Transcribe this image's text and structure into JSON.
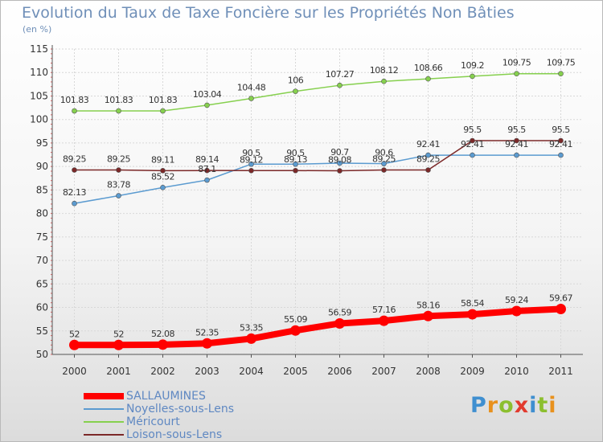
{
  "title": "Evolution du Taux de Taxe Foncière sur les Propriétés Non Bâties",
  "unit": "(en %)",
  "logo": {
    "letters": [
      "P",
      "r",
      "o",
      "x",
      "i",
      "t",
      "i"
    ],
    "colors": [
      "#3f8fd0",
      "#e8911d",
      "#8cbf2f",
      "#e23a2e",
      "#3f8fd0",
      "#8cbf2f",
      "#e8911d"
    ]
  },
  "chart_data": {
    "type": "line",
    "x": [
      "2000",
      "2001",
      "2002",
      "2003",
      "2004",
      "2005",
      "2006",
      "2007",
      "2008",
      "2009",
      "2010",
      "2011"
    ],
    "ylim": [
      50,
      115
    ],
    "yticks": [
      "50",
      "55",
      "60",
      "65",
      "70",
      "75",
      "80",
      "85",
      "90",
      "95",
      "100",
      "105",
      "110",
      "115"
    ],
    "grid": true,
    "legend": "bottom-left",
    "series": [
      {
        "name": "SALLAUMINES",
        "color": "#ff0000",
        "values": [
          52,
          52,
          52.08,
          52.35,
          53.35,
          55.09,
          56.59,
          57.16,
          58.16,
          58.54,
          59.24,
          59.67
        ],
        "labels": [
          "52",
          "52",
          "52.08",
          "52.35",
          "53.35",
          "55.09",
          "56.59",
          "57.16",
          "58.16",
          "58.54",
          "59.24",
          "59.67"
        ]
      },
      {
        "name": "Noyelles-sous-Lens",
        "color": "#5b9bd0",
        "values": [
          82.13,
          83.78,
          85.52,
          87.1,
          90.5,
          90.5,
          90.7,
          90.6,
          92.41,
          92.41,
          92.41,
          92.41
        ],
        "labels": [
          "82.13",
          "83.78",
          "85.52",
          "87.1",
          "90.5",
          "90.5",
          "90.7",
          "90.6",
          "92.41",
          "92.41",
          "92.41",
          "92.41"
        ]
      },
      {
        "name": "Méricourt",
        "color": "#86d04e",
        "values": [
          101.83,
          101.83,
          101.83,
          103.04,
          104.48,
          106,
          107.27,
          108.12,
          108.66,
          109.2,
          109.75,
          109.75
        ],
        "labels": [
          "101.83",
          "101.83",
          "101.83",
          "103.04",
          "104.48",
          "106",
          "107.27",
          "108.12",
          "108.66",
          "109.2",
          "109.75",
          "109.75"
        ]
      },
      {
        "name": "Loison-sous-Lens",
        "color": "#7b2828",
        "values": [
          89.25,
          89.25,
          89.11,
          89.14,
          89.12,
          89.13,
          89.08,
          89.25,
          89.25,
          95.5,
          95.5,
          95.5
        ],
        "labels": [
          "89.25",
          "89.25",
          "89.11",
          "89.14",
          "89.12",
          "89.13",
          "89.08",
          "89.25",
          "89.25",
          "95.5",
          "95.5",
          "95.5"
        ]
      }
    ]
  }
}
